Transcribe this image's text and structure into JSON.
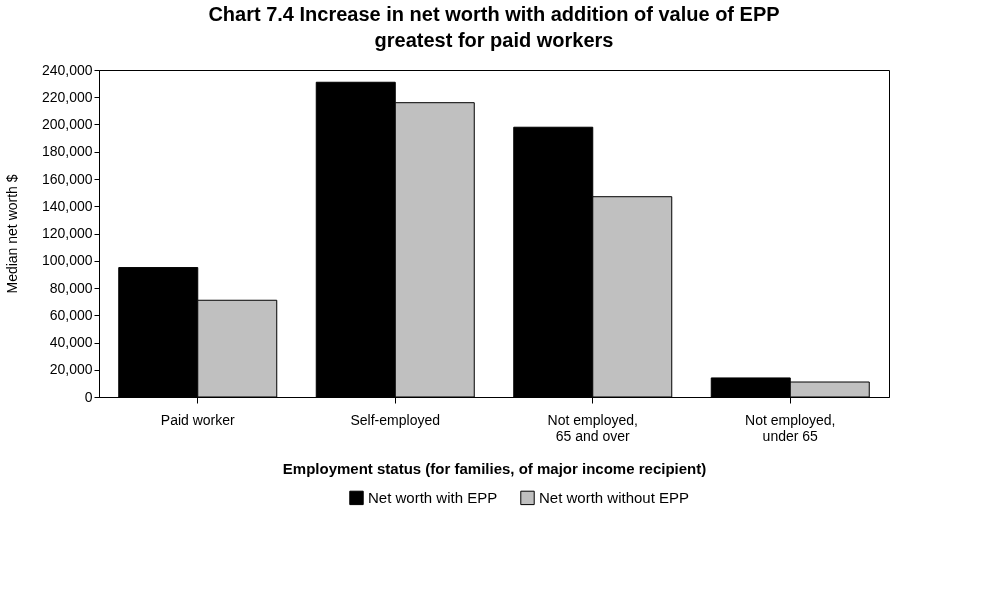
{
  "chart_data": {
    "type": "bar",
    "title": "Chart 7.4  Increase in net worth with addition of value of EPP greatest for paid workers",
    "categories": [
      "Paid worker",
      "Self-employed",
      "Not employed,\n65 and over",
      "Not employed,\nunder 65"
    ],
    "series": [
      {
        "name": "Net worth with EPP",
        "color": "#000000",
        "values": [
          95000,
          231000,
          198000,
          14000
        ]
      },
      {
        "name": "Net worth without EPP",
        "color": "#c0c0c0",
        "values": [
          71000,
          216000,
          147000,
          11000
        ]
      }
    ],
    "xlabel": "Employment status (for families, of major income recipient)",
    "ylabel": "Median net worth $",
    "ylim": [
      0,
      240000
    ],
    "yticks": [
      0,
      {
        "value": 20000,
        "label": "20,000"
      },
      {
        "value": 40000,
        "label": "40,000"
      },
      {
        "value": 60000,
        "label": "60,000"
      },
      {
        "value": 80000,
        "label": "80,000"
      },
      {
        "value": 100000,
        "label": "100,000"
      },
      {
        "value": 120000,
        "label": "120,000"
      },
      {
        "value": 140000,
        "label": "140,000"
      },
      {
        "value": 160000,
        "label": "160,000"
      },
      {
        "value": 180000,
        "label": "180,000"
      },
      {
        "value": 200000,
        "label": "200,000"
      },
      {
        "value": 220000,
        "label": "220,000"
      },
      {
        "value": 240000,
        "label": "240,000"
      }
    ],
    "grid": false,
    "legend": "bottom"
  }
}
